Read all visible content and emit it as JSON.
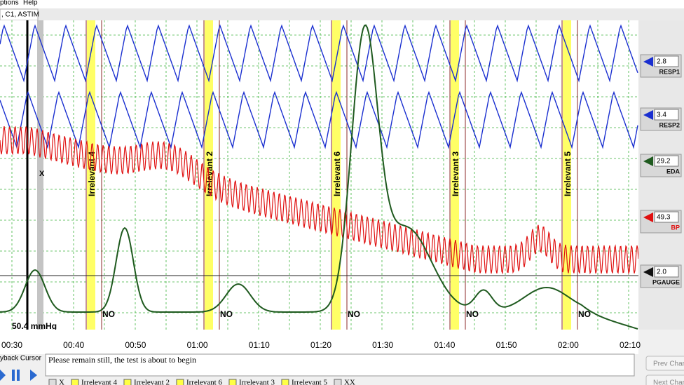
{
  "menu": [
    "ptions",
    "Help"
  ],
  "tab": ", C1, ASTIM",
  "scale_label": "50.4 mmHg",
  "marker": "X",
  "questions": [
    {
      "label": "Irrelevant 4",
      "answer": "NO"
    },
    {
      "label": "Irrelevant 2",
      "answer": "NO"
    },
    {
      "label": "Irrelevant 6",
      "answer": "NO"
    },
    {
      "label": "Irrelevant 3",
      "answer": "NO"
    },
    {
      "label": "Irrelevant 5",
      "answer": "NO"
    }
  ],
  "times": [
    "00:30",
    "00:40",
    "00:50",
    "01:00",
    "01:10",
    "01:20",
    "01:30",
    "01:40",
    "01:50",
    "02:00",
    "02:10"
  ],
  "channels": [
    {
      "name": "RESP1",
      "value": "2.8",
      "color": "#1a2fd0"
    },
    {
      "name": "RESP2",
      "value": "3.4",
      "color": "#1a2fd0"
    },
    {
      "name": "EDA",
      "value": "29.2",
      "color": "#1f5a1f"
    },
    {
      "name": "BP",
      "value": "49.3",
      "color": "#e01010"
    },
    {
      "name": "PGAUGE",
      "value": "2.0",
      "color": "#111111"
    }
  ],
  "playback": "yback Cursor",
  "message": "Please remain still, the test is about to begin",
  "buttons": [
    "Prev Chart",
    "Next Chart"
  ],
  "checkboxes": [
    "X",
    "Irrelevant 4",
    "Irrelevant 2",
    "Irrelevant 6",
    "Irrelevant 3",
    "Irrelevant 5",
    "XX"
  ]
}
